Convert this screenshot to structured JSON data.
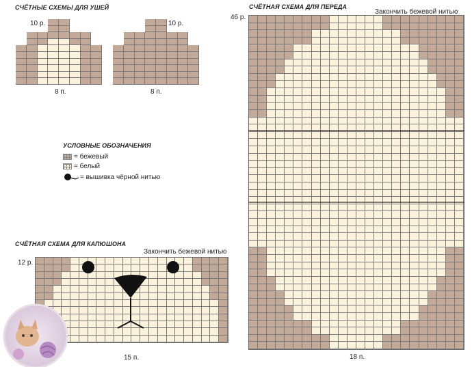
{
  "ears": {
    "title": "СЧЁТНЫЕ СХЕМЫ ДЛЯ УШЕЙ",
    "left_rows": "10 р.",
    "left_stitches": "8 п.",
    "right_rows": "10 р.",
    "right_stitches": "8 п."
  },
  "legend": {
    "title": "УСЛОВНЫЕ ОБОЗНАЧЕНИЯ",
    "beige": "= бежевый",
    "white": "= белый",
    "embroidery": "= вышивка чёрной нитью"
  },
  "hood": {
    "title": "СЧЁТНАЯ СХЕМА ДЛЯ КАПЮШОНА",
    "note": "Закончить бежевой нитью",
    "rows": "12 р.",
    "stitches": "15 п."
  },
  "front": {
    "title": "СЧЁТНАЯ СХЕМА ДЛЯ ПЕРЕДА",
    "note": "Закончить бежевой нитью",
    "rows": "46 р.",
    "stitches": "18 п."
  },
  "colors": {
    "beige": "#c3a998",
    "white": "#fbf3dc",
    "grid": "#7a7a7a",
    "black": "#111111"
  }
}
